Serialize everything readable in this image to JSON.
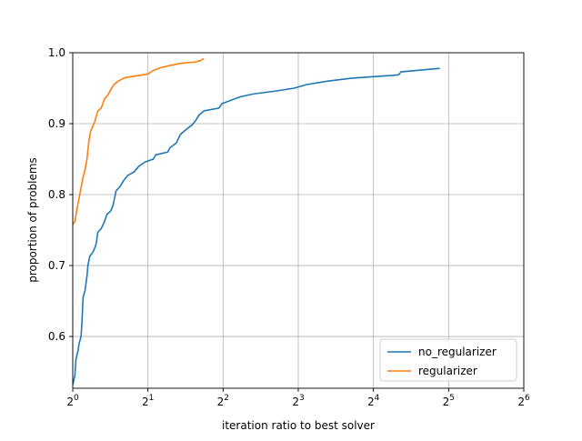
{
  "chart_data": {
    "type": "line",
    "title": "",
    "xlabel": "iteration ratio to best solver",
    "ylabel": "proportion of problems",
    "xscale": "log2",
    "xlim": [
      1,
      64
    ],
    "ylim": [
      0.527,
      1.0
    ],
    "grid": true,
    "legend_position": "lower-right",
    "x_ticks": [
      {
        "value": 1,
        "base": "2",
        "exp": "0"
      },
      {
        "value": 2,
        "base": "2",
        "exp": "1"
      },
      {
        "value": 4,
        "base": "2",
        "exp": "2"
      },
      {
        "value": 8,
        "base": "2",
        "exp": "3"
      },
      {
        "value": 16,
        "base": "2",
        "exp": "4"
      },
      {
        "value": 32,
        "base": "2",
        "exp": "5"
      },
      {
        "value": 64,
        "base": "2",
        "exp": "6"
      }
    ],
    "y_ticks": [
      {
        "value": 0.6,
        "label": "0.6"
      },
      {
        "value": 0.7,
        "label": "0.7"
      },
      {
        "value": 0.8,
        "label": "0.8"
      },
      {
        "value": 0.9,
        "label": "0.9"
      },
      {
        "value": 1.0,
        "label": "1.0"
      }
    ],
    "series": [
      {
        "name": "no_regularizer",
        "color": "#1f77b4",
        "points": [
          [
            1.0,
            0.532
          ],
          [
            1.02,
            0.545
          ],
          [
            1.03,
            0.568
          ],
          [
            1.05,
            0.58
          ],
          [
            1.06,
            0.59
          ],
          [
            1.08,
            0.6
          ],
          [
            1.09,
            0.625
          ],
          [
            1.1,
            0.655
          ],
          [
            1.12,
            0.665
          ],
          [
            1.14,
            0.685
          ],
          [
            1.15,
            0.7
          ],
          [
            1.17,
            0.713
          ],
          [
            1.21,
            0.72
          ],
          [
            1.24,
            0.73
          ],
          [
            1.26,
            0.747
          ],
          [
            1.3,
            0.752
          ],
          [
            1.34,
            0.762
          ],
          [
            1.37,
            0.772
          ],
          [
            1.42,
            0.777
          ],
          [
            1.45,
            0.785
          ],
          [
            1.49,
            0.805
          ],
          [
            1.55,
            0.812
          ],
          [
            1.6,
            0.82
          ],
          [
            1.66,
            0.827
          ],
          [
            1.76,
            0.832
          ],
          [
            1.84,
            0.84
          ],
          [
            1.95,
            0.846
          ],
          [
            2.1,
            0.85
          ],
          [
            2.15,
            0.856
          ],
          [
            2.4,
            0.86
          ],
          [
            2.45,
            0.866
          ],
          [
            2.6,
            0.873
          ],
          [
            2.7,
            0.885
          ],
          [
            2.85,
            0.892
          ],
          [
            3.0,
            0.898
          ],
          [
            3.1,
            0.904
          ],
          [
            3.2,
            0.912
          ],
          [
            3.35,
            0.918
          ],
          [
            3.85,
            0.922
          ],
          [
            3.95,
            0.928
          ],
          [
            4.3,
            0.933
          ],
          [
            4.7,
            0.938
          ],
          [
            5.3,
            0.942
          ],
          [
            6.5,
            0.946
          ],
          [
            7.7,
            0.95
          ],
          [
            8.6,
            0.955
          ],
          [
            10.5,
            0.96
          ],
          [
            13.0,
            0.964
          ],
          [
            15.5,
            0.966
          ],
          [
            19.0,
            0.968
          ],
          [
            20.2,
            0.969
          ],
          [
            20.6,
            0.973
          ],
          [
            29.5,
            0.978
          ]
        ]
      },
      {
        "name": "regularizer",
        "color": "#ff7f0e",
        "points": [
          [
            1.0,
            0.758
          ],
          [
            1.02,
            0.762
          ],
          [
            1.04,
            0.78
          ],
          [
            1.06,
            0.795
          ],
          [
            1.08,
            0.81
          ],
          [
            1.1,
            0.825
          ],
          [
            1.12,
            0.835
          ],
          [
            1.14,
            0.85
          ],
          [
            1.16,
            0.875
          ],
          [
            1.18,
            0.89
          ],
          [
            1.2,
            0.895
          ],
          [
            1.23,
            0.905
          ],
          [
            1.26,
            0.918
          ],
          [
            1.3,
            0.922
          ],
          [
            1.34,
            0.935
          ],
          [
            1.38,
            0.94
          ],
          [
            1.42,
            0.948
          ],
          [
            1.46,
            0.955
          ],
          [
            1.52,
            0.96
          ],
          [
            1.62,
            0.965
          ],
          [
            1.85,
            0.968
          ],
          [
            2.0,
            0.97
          ],
          [
            2.1,
            0.975
          ],
          [
            2.25,
            0.979
          ],
          [
            2.45,
            0.982
          ],
          [
            2.7,
            0.985
          ],
          [
            3.1,
            0.987
          ],
          [
            3.25,
            0.989
          ],
          [
            3.35,
            0.992
          ]
        ]
      }
    ]
  }
}
